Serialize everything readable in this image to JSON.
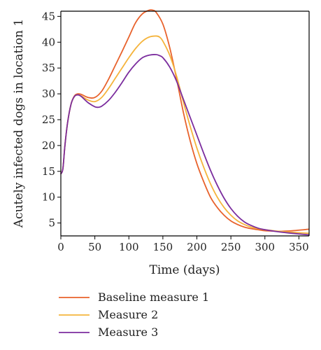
{
  "chart_data": {
    "type": "line",
    "xlabel": "Time (days)",
    "ylabel": "Acutely infected dogs in location 1",
    "xlim": [
      0,
      365
    ],
    "ylim": [
      2.5,
      46
    ],
    "x_ticks": [
      0,
      50,
      100,
      150,
      200,
      250,
      300,
      350
    ],
    "y_ticks": [
      5,
      10,
      15,
      20,
      25,
      30,
      35,
      40,
      45
    ],
    "grid": false,
    "legend_position": "bottom",
    "series": [
      {
        "name": "Baseline measure 1",
        "color": "#e8622c",
        "x": [
          0,
          3,
          6,
          10,
          15,
          20,
          25,
          30,
          40,
          50,
          60,
          70,
          80,
          90,
          100,
          110,
          120,
          130,
          135,
          140,
          150,
          160,
          170,
          180,
          190,
          200,
          210,
          220,
          230,
          240,
          250,
          260,
          270,
          280,
          290,
          300,
          320,
          340,
          365
        ],
        "values": [
          14.5,
          15.5,
          20.0,
          24.5,
          28.0,
          29.6,
          30.0,
          29.9,
          29.3,
          29.3,
          30.5,
          32.8,
          35.5,
          38.2,
          41.0,
          43.8,
          45.5,
          46.2,
          46.2,
          45.8,
          43.5,
          39.0,
          33.0,
          26.5,
          21.0,
          16.5,
          13.0,
          10.0,
          8.0,
          6.5,
          5.4,
          4.7,
          4.2,
          3.9,
          3.7,
          3.5,
          3.4,
          3.5,
          3.8
        ]
      },
      {
        "name": "Measure 2",
        "color": "#f5b43c",
        "x": [
          0,
          3,
          6,
          10,
          15,
          20,
          25,
          30,
          40,
          50,
          60,
          70,
          80,
          90,
          100,
          110,
          120,
          130,
          140,
          145,
          150,
          160,
          170,
          180,
          190,
          200,
          210,
          220,
          230,
          240,
          250,
          260,
          270,
          280,
          290,
          300,
          320,
          340,
          365
        ],
        "values": [
          14.5,
          15.5,
          20.0,
          24.5,
          28.0,
          29.5,
          29.8,
          29.6,
          28.8,
          28.5,
          29.3,
          31.0,
          33.0,
          35.0,
          37.0,
          38.8,
          40.2,
          41.0,
          41.2,
          41.0,
          40.2,
          37.5,
          33.5,
          28.5,
          23.8,
          19.5,
          15.8,
          12.6,
          10.0,
          8.0,
          6.5,
          5.4,
          4.7,
          4.2,
          3.9,
          3.7,
          3.4,
          3.2,
          3.0
        ]
      },
      {
        "name": "Measure 3",
        "color": "#7b2d9e",
        "x": [
          0,
          3,
          6,
          10,
          15,
          20,
          25,
          30,
          40,
          50,
          55,
          60,
          70,
          80,
          90,
          100,
          110,
          120,
          130,
          140,
          145,
          150,
          160,
          170,
          180,
          190,
          200,
          210,
          220,
          230,
          240,
          250,
          260,
          270,
          280,
          290,
          300,
          320,
          340,
          365
        ],
        "values": [
          14.5,
          15.5,
          20.0,
          24.5,
          28.0,
          29.5,
          29.8,
          29.5,
          28.3,
          27.5,
          27.4,
          27.6,
          28.7,
          30.3,
          32.2,
          34.2,
          35.8,
          37.0,
          37.5,
          37.6,
          37.4,
          37.0,
          35.2,
          32.5,
          29.0,
          25.5,
          22.0,
          18.5,
          15.2,
          12.3,
          9.8,
          7.8,
          6.3,
          5.2,
          4.5,
          4.0,
          3.7,
          3.3,
          3.0,
          2.7
        ]
      }
    ]
  }
}
